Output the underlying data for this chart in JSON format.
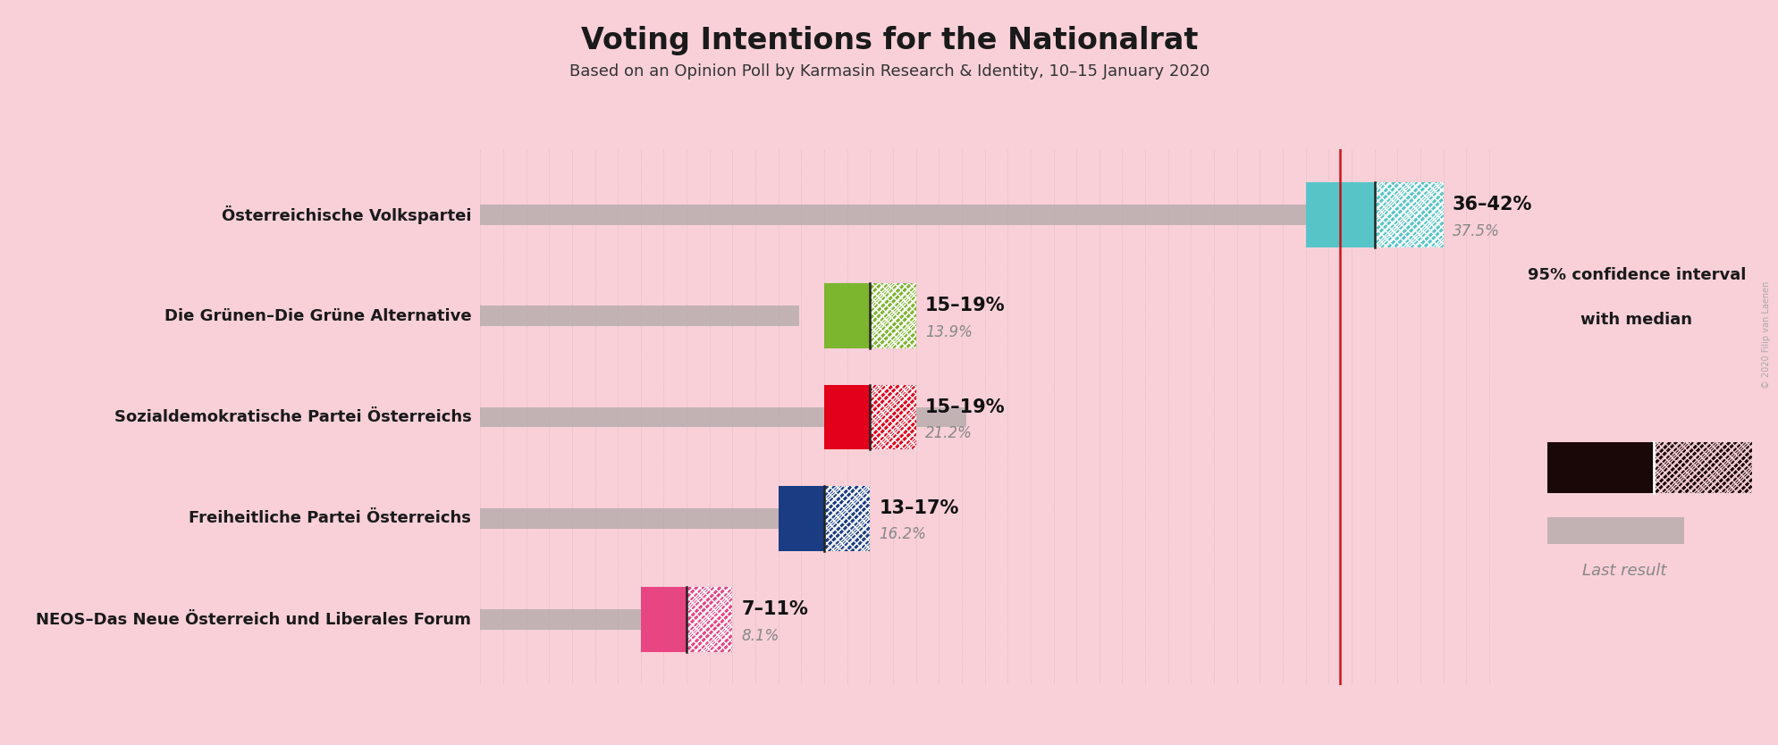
{
  "title": "Voting Intentions for the Nationalrat",
  "subtitle": "Based on an Opinion Poll by Karmasin Research & Identity, 10–15 January 2020",
  "copyright": "© 2020 Filip van Laenen",
  "background_color": "#f9d0d8",
  "parties": [
    {
      "name": "Österreichische Volkspartei",
      "color": "#57C5C8",
      "last_result": 37.5,
      "ci_low": 36,
      "ci_high": 42,
      "median": 39,
      "label": "36–42%",
      "last_label": "37.5%"
    },
    {
      "name": "Die Grünen–Die Grüne Alternative",
      "color": "#7CB52E",
      "last_result": 13.9,
      "ci_low": 15,
      "ci_high": 19,
      "median": 17,
      "label": "15–19%",
      "last_label": "13.9%"
    },
    {
      "name": "Sozialdemokratische Partei Österreichs",
      "color": "#E3001B",
      "last_result": 21.2,
      "ci_low": 15,
      "ci_high": 19,
      "median": 17,
      "label": "15–19%",
      "last_label": "21.2%"
    },
    {
      "name": "Freiheitliche Partei Österreichs",
      "color": "#1A3C82",
      "last_result": 16.2,
      "ci_low": 13,
      "ci_high": 17,
      "median": 15,
      "label": "13–17%",
      "last_label": "16.2%"
    },
    {
      "name": "NEOS–Das Neue Österreich und Liberales Forum",
      "color": "#E84583",
      "last_result": 8.1,
      "ci_low": 7,
      "ci_high": 11,
      "median": 9,
      "label": "7–11%",
      "last_label": "8.1%"
    }
  ],
  "xmax": 45,
  "red_line_x": 37.5,
  "last_result_color": "#b0a8a8",
  "legend_color": "#1a0808"
}
